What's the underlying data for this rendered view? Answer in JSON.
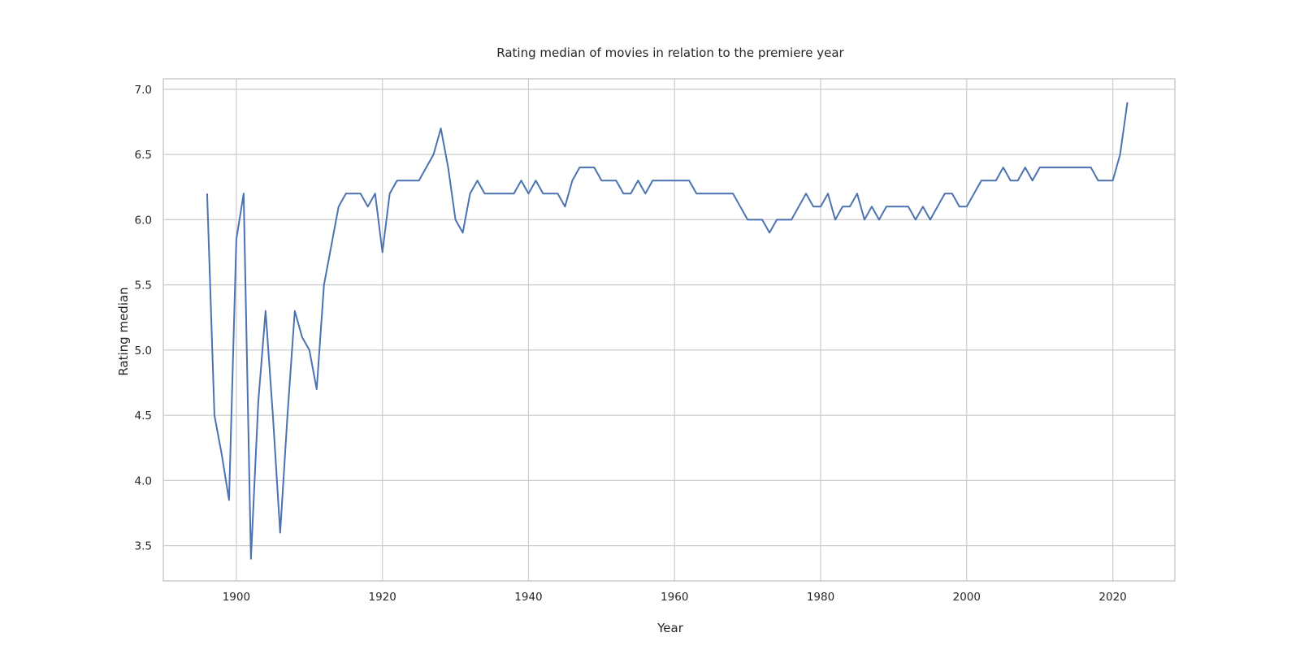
{
  "chart_data": {
    "type": "line",
    "title": "Rating median of movies in relation to the premiere year",
    "xlabel": "Year",
    "ylabel": "Rating median",
    "xlim": [
      1890,
      2028.5
    ],
    "ylim": [
      3.23,
      7.08
    ],
    "xticks": [
      1900,
      1920,
      1940,
      1960,
      1980,
      2000,
      2020
    ],
    "yticks": [
      "3.5",
      "4.0",
      "4.5",
      "5.0",
      "5.5",
      "6.0",
      "6.5",
      "7.0"
    ],
    "grid": true,
    "legend": "none",
    "color": "#4c72b0",
    "series": [
      {
        "x": [
          1896,
          1897,
          1898,
          1899,
          1900,
          1901,
          1902,
          1903,
          1904,
          1905,
          1906,
          1907,
          1908,
          1909,
          1910,
          1911,
          1912,
          1913,
          1914,
          1915,
          1916,
          1917,
          1918,
          1919,
          1920,
          1921,
          1922,
          1923,
          1924,
          1925,
          1926,
          1927,
          1928,
          1929,
          1930,
          1931,
          1932,
          1933,
          1934,
          1935,
          1936,
          1937,
          1938,
          1939,
          1940,
          1941,
          1942,
          1943,
          1944,
          1945,
          1946,
          1947,
          1948,
          1949,
          1950,
          1951,
          1952,
          1953,
          1954,
          1955,
          1956,
          1957,
          1958,
          1959,
          1960,
          1961,
          1962,
          1963,
          1964,
          1965,
          1966,
          1967,
          1968,
          1969,
          1970,
          1971,
          1972,
          1973,
          1974,
          1975,
          1976,
          1977,
          1978,
          1979,
          1980,
          1981,
          1982,
          1983,
          1984,
          1985,
          1986,
          1987,
          1988,
          1989,
          1990,
          1991,
          1992,
          1993,
          1994,
          1995,
          1996,
          1997,
          1998,
          1999,
          2000,
          2001,
          2002,
          2003,
          2004,
          2005,
          2006,
          2007,
          2008,
          2009,
          2010,
          2011,
          2012,
          2013,
          2014,
          2015,
          2016,
          2017,
          2018,
          2019,
          2020,
          2021,
          2022
        ],
        "y": [
          6.2,
          4.5,
          4.2,
          3.85,
          5.85,
          6.2,
          3.4,
          4.6,
          5.3,
          4.5,
          3.6,
          4.5,
          5.3,
          5.1,
          5.0,
          4.7,
          5.5,
          5.8,
          6.1,
          6.2,
          6.2,
          6.2,
          6.1,
          6.2,
          5.75,
          6.2,
          6.3,
          6.3,
          6.3,
          6.3,
          6.4,
          6.5,
          6.7,
          6.4,
          6.0,
          5.9,
          6.2,
          6.3,
          6.2,
          6.2,
          6.2,
          6.2,
          6.2,
          6.3,
          6.2,
          6.3,
          6.2,
          6.2,
          6.2,
          6.1,
          6.3,
          6.4,
          6.4,
          6.4,
          6.3,
          6.3,
          6.3,
          6.2,
          6.2,
          6.3,
          6.2,
          6.3,
          6.3,
          6.3,
          6.3,
          6.3,
          6.3,
          6.2,
          6.2,
          6.2,
          6.2,
          6.2,
          6.2,
          6.1,
          6.0,
          6.0,
          6.0,
          5.9,
          6.0,
          6.0,
          6.0,
          6.1,
          6.2,
          6.1,
          6.1,
          6.2,
          6.0,
          6.1,
          6.1,
          6.2,
          6.0,
          6.1,
          6.0,
          6.1,
          6.1,
          6.1,
          6.1,
          6.0,
          6.1,
          6.0,
          6.1,
          6.2,
          6.2,
          6.1,
          6.1,
          6.2,
          6.3,
          6.3,
          6.3,
          6.4,
          6.3,
          6.3,
          6.4,
          6.3,
          6.4,
          6.4,
          6.4,
          6.4,
          6.4,
          6.4,
          6.4,
          6.4,
          6.3,
          6.3,
          6.3,
          6.5,
          6.9
        ]
      }
    ]
  }
}
